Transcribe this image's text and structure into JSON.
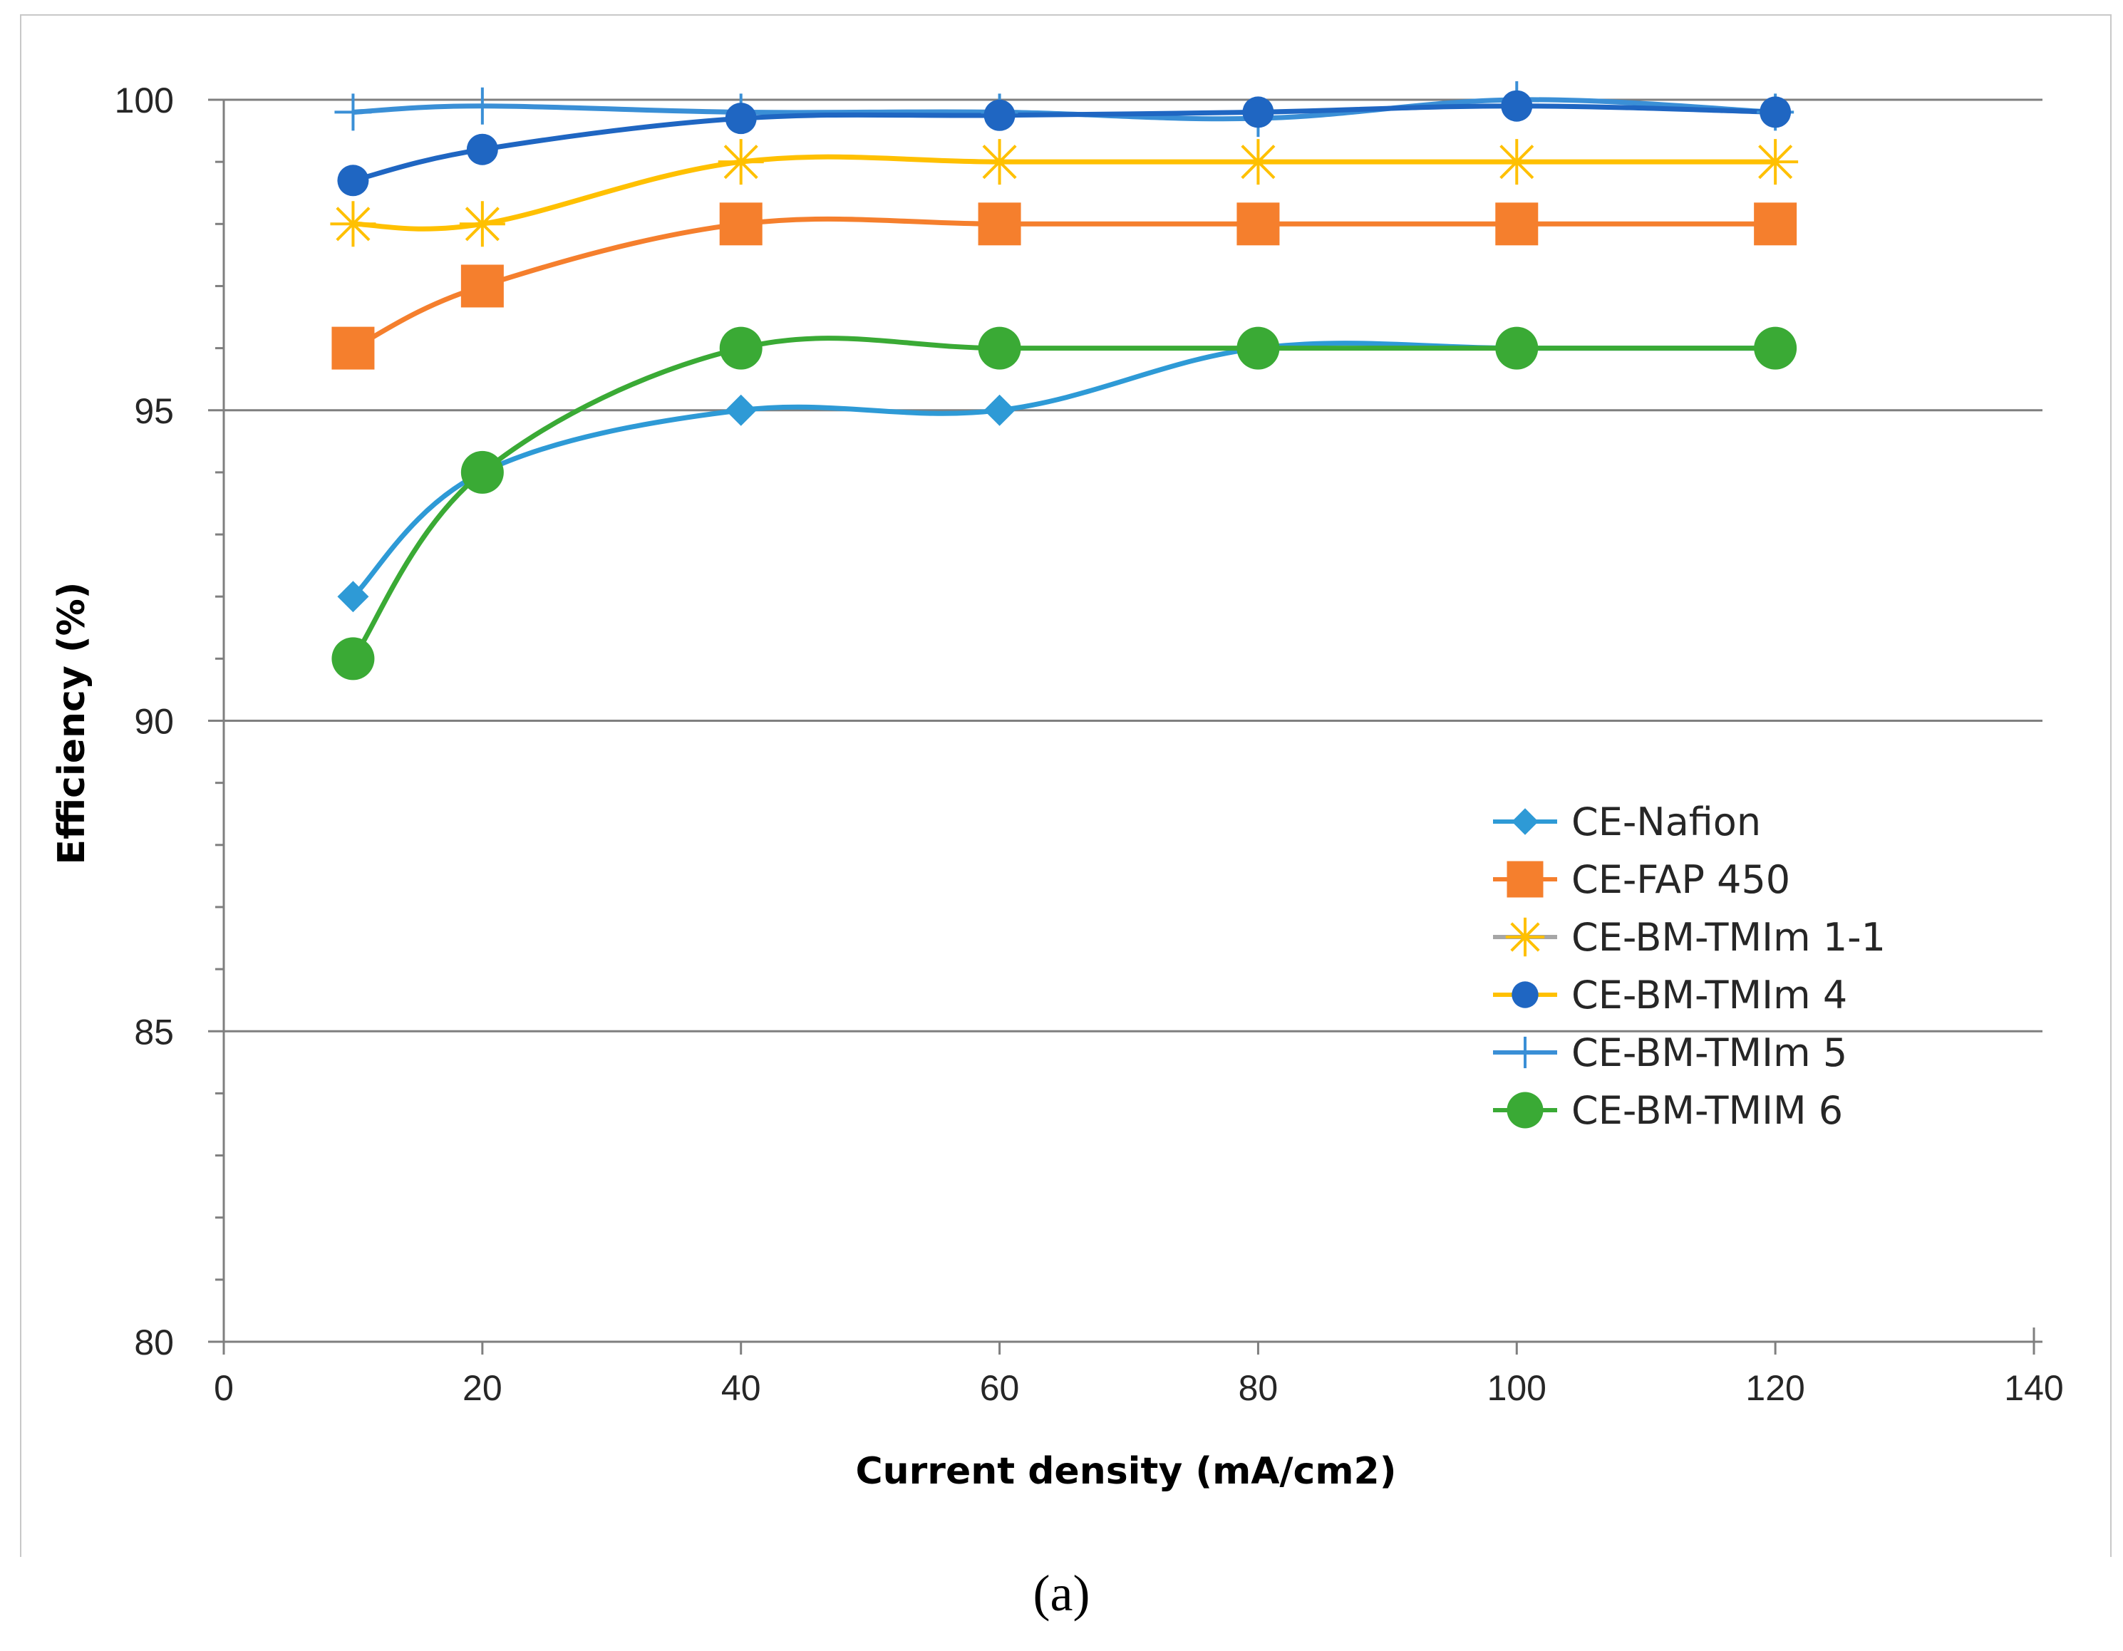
{
  "chart_data": {
    "type": "line",
    "title": "",
    "xlabel": "Current density (mA/cm2)",
    "ylabel": "Efficiency (%)",
    "xlim": [
      0,
      140
    ],
    "ylim": [
      80,
      100
    ],
    "xticks": [
      0,
      20,
      40,
      60,
      80,
      100,
      120,
      140
    ],
    "yticks": [
      80,
      85,
      90,
      95,
      100
    ],
    "grid": "horizontal major lines",
    "legend_position": "center-right",
    "x": [
      10,
      20,
      40,
      60,
      80,
      100,
      120
    ],
    "series": [
      {
        "name": "CE-Nafion",
        "color": "#2e9ad6",
        "marker": "diamond",
        "values": [
          92,
          94,
          95,
          95,
          96,
          96,
          96
        ]
      },
      {
        "name": "CE-FAP 450",
        "color": "#f57f2d",
        "marker": "square",
        "values": [
          96,
          97,
          98,
          98,
          98,
          98,
          98
        ]
      },
      {
        "name": "CE-BM-TMIm 1-1",
        "color": "#ffc000",
        "marker": "star",
        "values": [
          98,
          98,
          99,
          99,
          99,
          99,
          99
        ]
      },
      {
        "name": "CE-BM-TMIm 4",
        "color": "#1f66c2",
        "marker": "circle",
        "values": [
          98.7,
          99.2,
          99.7,
          99.75,
          99.8,
          99.9,
          99.8
        ]
      },
      {
        "name": "CE-BM-TMIm 5",
        "color": "#3a8fd6",
        "marker": "plus",
        "values": [
          99.8,
          99.9,
          99.8,
          99.8,
          99.7,
          100,
          99.8
        ]
      },
      {
        "name": "CE-BM-TMIM 6",
        "color": "#3aaa35",
        "marker": "circle",
        "values": [
          91,
          94,
          96,
          96,
          96,
          96,
          96
        ]
      }
    ]
  },
  "caption": "(a)"
}
